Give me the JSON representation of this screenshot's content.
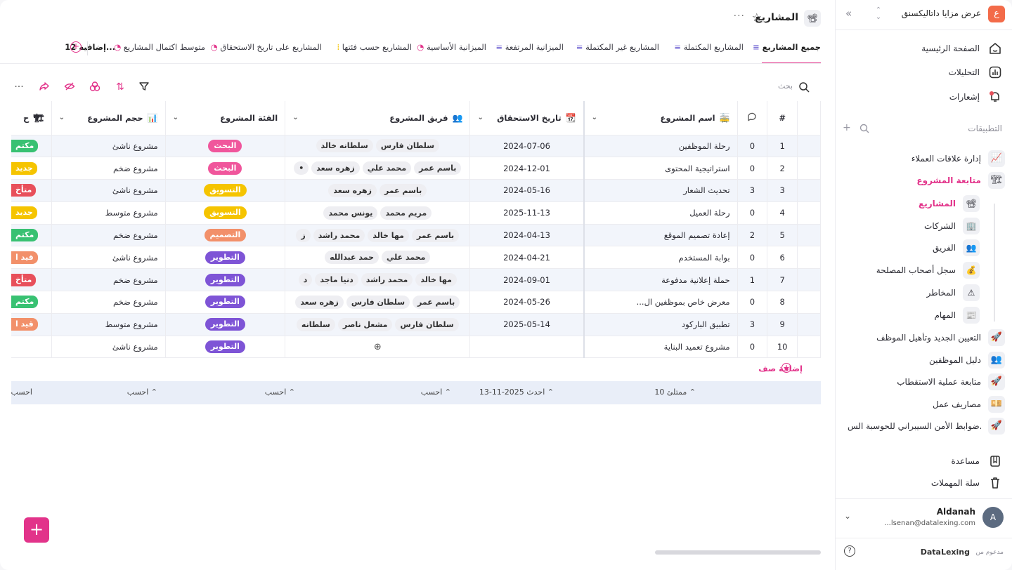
{
  "workspace": {
    "logo": "ع",
    "name": "عرض مزايا داتاليكسنق"
  },
  "nav": [
    {
      "label": "الصفحة الرئيسية",
      "icon": "home-icon"
    },
    {
      "label": "التحليلات",
      "icon": "analytics-icon"
    },
    {
      "label": "إشعارات",
      "icon": "bell-icon"
    }
  ],
  "apps_title": "التطبيقات",
  "apps": [
    {
      "label": "إدارة علاقات العملاء",
      "icon": "📈"
    },
    {
      "label": "متابعة المشروع",
      "icon": "🏗"
    }
  ],
  "sub_apps": [
    {
      "label": "المشاريع",
      "icon": "📽"
    },
    {
      "label": "الشركات",
      "icon": "🏢"
    },
    {
      "label": "الفريق",
      "icon": "👥"
    },
    {
      "label": "سجل أصحاب المصلحة",
      "icon": "💰"
    },
    {
      "label": "المخاطر",
      "icon": "⚠"
    },
    {
      "label": "المهام",
      "icon": "📰"
    }
  ],
  "more_apps": [
    {
      "label": "التعيين الجديد وتأهيل الموظف",
      "icon": "🚀"
    },
    {
      "label": "دليل الموظفين",
      "icon": "👥"
    },
    {
      "label": "متابعة عملية الاستقطاب",
      "icon": "🚀"
    },
    {
      "label": "مصاريف عمل",
      "icon": "💴"
    },
    {
      "label": "ضوابط الأمن السيبراني للحوسبة الس...",
      "icon": "🚀"
    }
  ],
  "bottom_nav": [
    {
      "label": "مساعدة"
    },
    {
      "label": "سلة المهملات"
    }
  ],
  "user": {
    "name": "Aldanah",
    "email": "...lsenan@datalexing.com",
    "initial": "A"
  },
  "powered": {
    "prefix": "مدعوم من",
    "brand": "DataLexing",
    "help": "?"
  },
  "page": {
    "title": "المشاريع",
    "icon": "📽"
  },
  "tabs": [
    "جميع المشاريع",
    "المشاريع المكتملة",
    "المشاريع غير المكتملة",
    "الميزانية المرتفعة",
    "الميزانية الأساسية",
    "المشاريع حسب فئتها",
    "المشاريع على تاريخ الاستحقاق",
    "متوسط اكتمال المشاريع",
    "12 إضافية..."
  ],
  "toolbar": {
    "search": "بحث"
  },
  "columns": {
    "num": "#",
    "name": "اسم المشروع",
    "due": "تاريخ الاستحقاق",
    "team": "فريق المشروع",
    "category": "الفئة المشروع",
    "size": "حجم المشروع"
  },
  "rows": [
    {
      "num": "1",
      "comments": "0",
      "name": "رحلة الموظفين",
      "due": "2024-07-06",
      "team": [
        "سلطان فارس",
        "سلطانه خالد"
      ],
      "category": "البحث",
      "size": "مشروع ناشئ",
      "status": "مكتم"
    },
    {
      "num": "2",
      "comments": "0",
      "name": "استراتيجية المحتوى",
      "due": "2024-12-01",
      "team": [
        "باسم عمر",
        "محمد علي",
        "زهره سعد",
        "•"
      ],
      "category": "البحث",
      "size": "مشروع ضخم",
      "status": "جديد"
    },
    {
      "num": "3",
      "comments": "3",
      "name": "تحديث الشعار",
      "due": "2024-05-16",
      "team": [
        "باسم عمر",
        "زهره سعد"
      ],
      "category": "التسويق",
      "size": "مشروع ناشئ",
      "status": "متأخ"
    },
    {
      "num": "4",
      "comments": "0",
      "name": "رحلة العميل",
      "due": "2025-11-13",
      "team": [
        "مريم محمد",
        "يونس محمد"
      ],
      "category": "التسويق",
      "size": "مشروع متوسط",
      "status": "جديد"
    },
    {
      "num": "5",
      "comments": "2",
      "name": "إعادة تصميم الموقع",
      "due": "2024-04-13",
      "team": [
        "باسم عمر",
        "مها خالد",
        "محمد راشد",
        "ز"
      ],
      "category": "التصميم",
      "size": "مشروع ضخم",
      "status": "مكتم"
    },
    {
      "num": "6",
      "comments": "0",
      "name": "بوابة المستخدم",
      "due": "2024-04-21",
      "team": [
        "محمد علي",
        "حمد عبدالله"
      ],
      "category": "التطوير",
      "size": "مشروع ناشئ",
      "status": "قيد ا"
    },
    {
      "num": "7",
      "comments": "1",
      "name": "حملة إعلانية مدفوعة",
      "due": "2024-09-01",
      "team": [
        "مها خالد",
        "محمد راشد",
        "دنيا ماجد",
        "د"
      ],
      "category": "التطوير",
      "size": "مشروع ضخم",
      "status": "متأخ"
    },
    {
      "num": "8",
      "comments": "0",
      "name": "معرض خاص بموظفين ال...",
      "due": "2024-05-26",
      "team": [
        "باسم عمر",
        "سلطان فارس",
        "زهره سعد"
      ],
      "category": "التطوير",
      "size": "مشروع ضخم",
      "status": "مكتم"
    },
    {
      "num": "9",
      "comments": "3",
      "name": "تطبيق الباركود",
      "due": "2025-05-14",
      "team": [
        "سلطان فارس",
        "مشعل ناصر",
        "سلطانه"
      ],
      "category": "التطوير",
      "size": "مشروع متوسط",
      "status": "قيد ا"
    },
    {
      "num": "10",
      "comments": "0",
      "name": "مشروع تعميد البناية",
      "due": "",
      "team": [],
      "category": "التطوير",
      "size": "مشروع ناشئ",
      "status": ""
    }
  ],
  "add_row": "إضافة صف",
  "summary": {
    "name": "ممتلئ 10",
    "due": "احدث 2025-11-13",
    "team": "احسب",
    "category": "احسب",
    "size": "احسب",
    "extra": "احسب"
  },
  "colors": {
    "accent": "#e2338a",
    "البحث": "#f0569c",
    "التسويق": "#f5c400",
    "التصميم": "#f2906a",
    "التطوير": "#7e54d6",
    "مكتم": "#38c172",
    "جديد": "#f5c400",
    "متأخ": "#e8505b",
    "قيد ا": "#f2906a"
  }
}
